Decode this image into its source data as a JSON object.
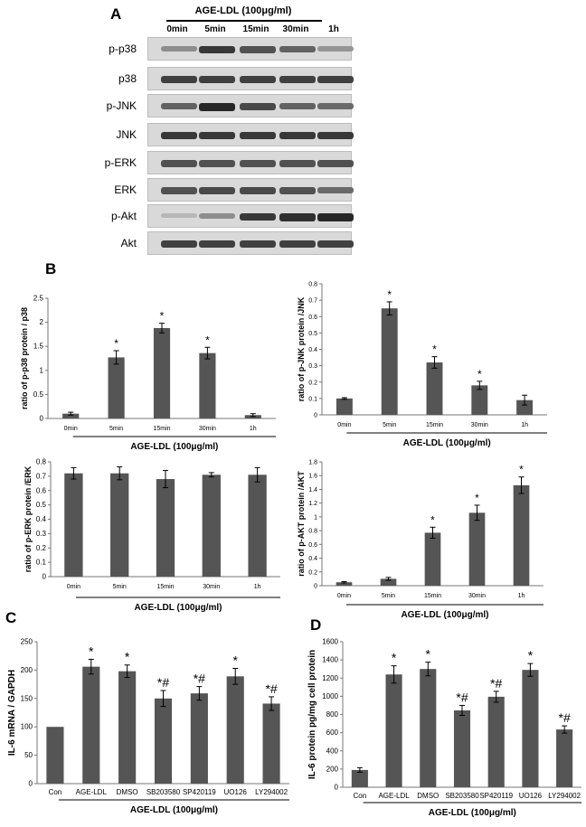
{
  "panel_a": {
    "letter": "A",
    "treatment": "AGE-LDL (100μg/ml)",
    "times": [
      "0min",
      "5min",
      "15min",
      "30min",
      "1h"
    ],
    "rows": [
      {
        "label": "p-p38",
        "intensity": [
          0.35,
          0.85,
          0.7,
          0.6,
          0.3
        ]
      },
      {
        "label": "p38",
        "intensity": [
          0.8,
          0.8,
          0.8,
          0.8,
          0.8
        ]
      },
      {
        "label": "p-JNK",
        "intensity": [
          0.6,
          0.95,
          0.75,
          0.6,
          0.55
        ]
      },
      {
        "label": "JNK",
        "intensity": [
          0.85,
          0.85,
          0.85,
          0.85,
          0.85
        ]
      },
      {
        "label": "p-ERK",
        "intensity": [
          0.7,
          0.7,
          0.7,
          0.7,
          0.7
        ]
      },
      {
        "label": "ERK",
        "intensity": [
          0.7,
          0.75,
          0.75,
          0.7,
          0.55
        ]
      },
      {
        "label": "p-Akt",
        "intensity": [
          0.1,
          0.35,
          0.85,
          0.9,
          0.95
        ]
      },
      {
        "label": "Akt",
        "intensity": [
          0.8,
          0.8,
          0.8,
          0.8,
          0.8
        ]
      }
    ]
  },
  "panel_b_letter": "B",
  "panel_c_letter": "C",
  "panel_d_letter": "D",
  "chart_data": [
    {
      "type": "bar",
      "id": "b1",
      "categories": [
        "0min",
        "5min",
        "15min",
        "30min",
        "1h"
      ],
      "values": [
        0.1,
        1.27,
        1.88,
        1.36,
        0.07
      ],
      "errors": [
        0.03,
        0.14,
        0.1,
        0.12,
        0.03
      ],
      "annotations": [
        "",
        "*",
        "*",
        "*",
        ""
      ],
      "ylabel": "ratio of p-p38 protein / p38",
      "xlabel": "AGE-LDL (100μg/ml)",
      "ylim": [
        0,
        2.5
      ],
      "yticks": [
        0,
        0.5,
        1,
        1.5,
        2,
        2.5
      ],
      "ytick_labels": [
        "0",
        "0.5",
        "1",
        "1.5",
        "2",
        "2.5"
      ],
      "bar_color": "#555555"
    },
    {
      "type": "bar",
      "id": "b2",
      "categories": [
        "0min",
        "5min",
        "15min",
        "30min",
        "1h"
      ],
      "values": [
        0.1,
        0.65,
        0.32,
        0.18,
        0.09
      ],
      "errors": [
        0.005,
        0.04,
        0.035,
        0.025,
        0.03
      ],
      "annotations": [
        "",
        "*",
        "*",
        "*",
        ""
      ],
      "ylabel": "ratio of p-JNK protein /JNK",
      "xlabel": "AGE-LDL (100μg/ml)",
      "ylim": [
        0,
        0.8
      ],
      "yticks": [
        0,
        0.1,
        0.2,
        0.3,
        0.4,
        0.5,
        0.6,
        0.7,
        0.8
      ],
      "ytick_labels": [
        "0",
        "0.1",
        "0.2",
        "0.3",
        "0.4",
        "0.5",
        "0.6",
        "0.7",
        "0.8"
      ],
      "bar_color": "#555555"
    },
    {
      "type": "bar",
      "id": "b3",
      "categories": [
        "0min",
        "5min",
        "15min",
        "30min",
        "1h"
      ],
      "values": [
        0.72,
        0.72,
        0.68,
        0.71,
        0.71
      ],
      "errors": [
        0.04,
        0.045,
        0.06,
        0.015,
        0.05
      ],
      "annotations": [
        "",
        "",
        "",
        "",
        ""
      ],
      "ylabel": "ratio of p-ERK protein /ERK",
      "xlabel": "AGE-LDL (100μg/ml)",
      "ylim": [
        0,
        0.8
      ],
      "yticks": [
        0,
        0.1,
        0.2,
        0.3,
        0.4,
        0.5,
        0.6,
        0.7,
        0.8
      ],
      "ytick_labels": [
        "0",
        "0.1",
        "0.2",
        "0.3",
        "0.4",
        "0.5",
        "0.6",
        "0.7",
        "0.8"
      ],
      "bar_color": "#555555"
    },
    {
      "type": "bar",
      "id": "b4",
      "categories": [
        "0min",
        "5min",
        "15min",
        "30min",
        "1h"
      ],
      "values": [
        0.05,
        0.1,
        0.77,
        1.06,
        1.46
      ],
      "errors": [
        0.01,
        0.02,
        0.08,
        0.11,
        0.12
      ],
      "annotations": [
        "",
        "",
        "*",
        "*",
        "*"
      ],
      "ylabel": "ratio of p-AKT protein /AKT",
      "xlabel": "AGE-LDL (100μg/ml)",
      "ylim": [
        0,
        1.8
      ],
      "yticks": [
        0,
        0.2,
        0.4,
        0.6,
        0.8,
        1,
        1.2,
        1.4,
        1.6,
        1.8
      ],
      "ytick_labels": [
        "0",
        "0.2",
        "0.4",
        "0.6",
        "0.8",
        "1",
        "1.2",
        "1.4",
        "1.6",
        "1.8"
      ],
      "bar_color": "#555555"
    },
    {
      "type": "bar",
      "id": "c",
      "categories": [
        "Con",
        "AGE-LDL",
        "DMSO",
        "SB203580",
        "SP420119",
        "UO126",
        "LY294002"
      ],
      "values": [
        100,
        206,
        198,
        150,
        159,
        189,
        141
      ],
      "errors": [
        0,
        13,
        11,
        14,
        12,
        14,
        12
      ],
      "annotations": [
        "",
        "*",
        "*",
        "*#",
        "*#",
        "*",
        "*#"
      ],
      "ylabel": "IL-6 mRNA / GAPDH",
      "xlabel": "AGE-LDL (100μg/ml)",
      "ylim": [
        0,
        250
      ],
      "yticks": [
        0,
        50,
        100,
        150,
        200,
        250
      ],
      "ytick_labels": [
        "0",
        "50",
        "100",
        "150",
        "200",
        "250"
      ],
      "bar_color": "#555555"
    },
    {
      "type": "bar",
      "id": "d",
      "categories": [
        "Con",
        "AGE-LDL",
        "DMSO",
        "SB203580",
        "SP420119",
        "UO126",
        "LY294002"
      ],
      "values": [
        190,
        1240,
        1300,
        845,
        995,
        1290,
        635
      ],
      "errors": [
        25,
        95,
        75,
        55,
        60,
        70,
        40
      ],
      "annotations": [
        "",
        "*",
        "*",
        "*#",
        "*#",
        "*",
        "*#"
      ],
      "ylabel": "IL-6 protein pg/mg cell protein",
      "xlabel": "AGE-LDL (100μg/ml)",
      "ylim": [
        0,
        1600
      ],
      "yticks": [
        0,
        200,
        400,
        600,
        800,
        1000,
        1200,
        1400,
        1600
      ],
      "ytick_labels": [
        "0",
        "200",
        "400",
        "600",
        "800",
        "1000",
        "1200",
        "1400",
        "1600"
      ],
      "bar_color": "#555555"
    }
  ]
}
